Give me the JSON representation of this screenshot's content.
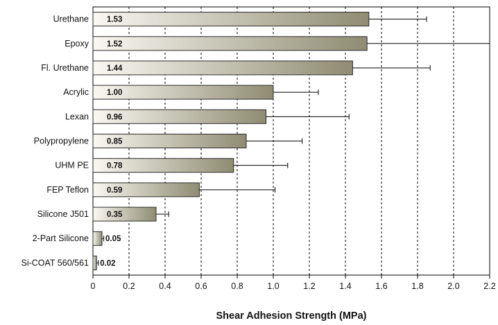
{
  "chart_data": {
    "type": "bar",
    "orientation": "horizontal",
    "categories": [
      "Urethane",
      "Epoxy",
      "Fl. Urethane",
      "Acrylic",
      "Lexan",
      "Polypropylene",
      "UHM PE",
      "FEP Teflon",
      "Silicone J501",
      "2-Part Silicone",
      "Si-COAT 560/561"
    ],
    "values": [
      1.53,
      1.52,
      1.44,
      1.0,
      0.96,
      0.85,
      0.78,
      0.59,
      0.35,
      0.05,
      0.02
    ],
    "value_labels": [
      "1.53",
      "1.52",
      "1.44",
      "1.00",
      "0.96",
      "0.85",
      "0.78",
      "0.59",
      "0.35",
      "0.05",
      "0.02"
    ],
    "error_plus": [
      0.32,
      0.68,
      0.43,
      0.25,
      0.46,
      0.31,
      0.3,
      0.42,
      0.07,
      0.01,
      0.01
    ],
    "xlabel": "Shear Adhesion Strength (MPa)",
    "xlim": [
      0,
      2.2
    ],
    "xticks": [
      "0",
      "0.2",
      "0.4",
      "0.6",
      "0.8",
      "1.0",
      "1.2",
      "1.4",
      "1.6",
      "1.8",
      "2.0",
      "2.2"
    ],
    "grid": "vertical dashed",
    "bar_gradient": [
      "#faf8f2",
      "#8f8c72"
    ]
  }
}
